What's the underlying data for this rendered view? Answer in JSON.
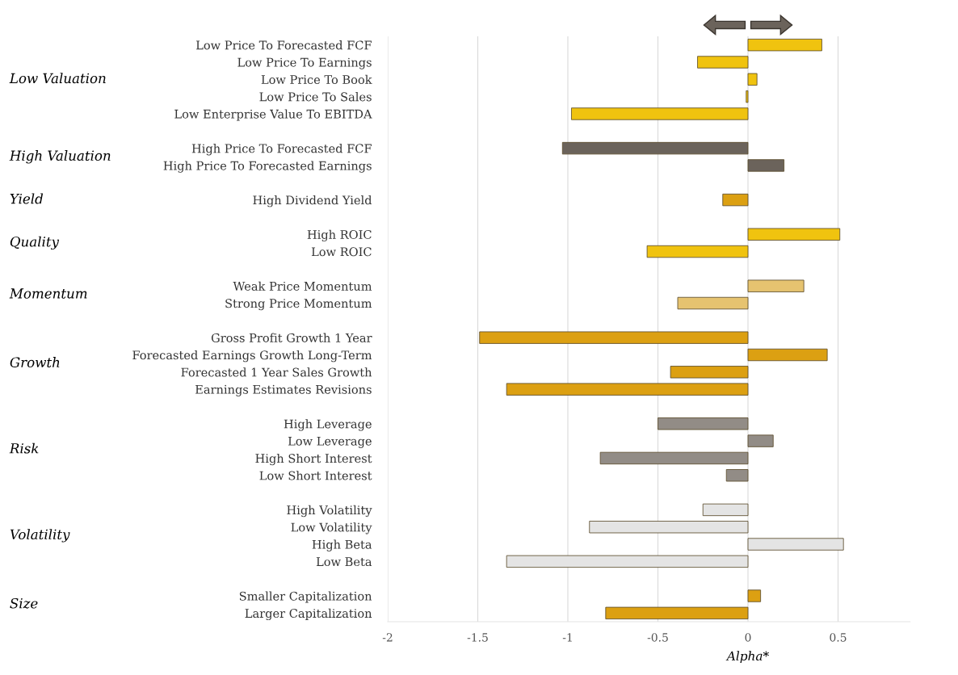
{
  "chart_data": {
    "type": "bar",
    "orientation": "horizontal",
    "xlabel": "Alpha*",
    "categories": [
      "Low Price To Forecasted FCF",
      "Low Price To Earnings",
      "Low Price To Book",
      "Low Price To Sales",
      "Low Enterprise Value To EBITDA",
      null,
      "High Price To Forecasted FCF",
      "High Price To Forecasted Earnings",
      null,
      "High Dividend Yield",
      null,
      "High ROIC",
      "Low ROIC",
      null,
      "Weak Price Momentum",
      "Strong Price Momentum",
      null,
      "Gross Profit Growth 1 Year",
      "Forecasted Earnings Growth Long-Term",
      "Forecasted 1 Year Sales Growth",
      "Earnings Estimates Revisions",
      null,
      "High Leverage",
      "Low Leverage",
      "High Short Interest",
      "Low Short Interest",
      null,
      "High Volatility",
      "Low Volatility",
      "High Beta",
      "Low Beta",
      null,
      "Smaller Capitalization",
      "Larger Capitalization"
    ],
    "values": [
      0.41,
      -0.28,
      0.05,
      -0.01,
      -0.98,
      null,
      -1.03,
      0.2,
      null,
      -0.14,
      null,
      0.51,
      -0.56,
      null,
      0.31,
      -0.39,
      null,
      -1.49,
      0.44,
      -0.43,
      -1.34,
      null,
      -0.5,
      0.14,
      -0.82,
      -0.12,
      null,
      -0.25,
      -0.88,
      0.53,
      -1.34,
      null,
      0.07,
      -0.79
    ],
    "colors": [
      "#f0c30f",
      "#f0c30f",
      "#f0c30f",
      "#f0c30f",
      "#f0c30f",
      null,
      "#6b635b",
      "#6b635b",
      null,
      "#dca012",
      null,
      "#f0c30f",
      "#f0c30f",
      null,
      "#e6c370",
      "#e6c370",
      null,
      "#dca012",
      "#dca012",
      "#dca012",
      "#dca012",
      null,
      "#928c86",
      "#928c86",
      "#928c86",
      "#928c86",
      null,
      "#e4e4e4",
      "#e4e4e4",
      "#e4e4e4",
      "#e4e4e4",
      null,
      "#dca012",
      "#dca012"
    ],
    "xlim": [
      -2,
      0.9
    ],
    "xticks": [
      -2,
      -1.5,
      -1,
      -0.5,
      0,
      0.5
    ],
    "grid": "x",
    "annotations": [
      "Low Valuation",
      "High Valuation",
      "Yield",
      "Quality",
      "Momentum",
      "Growth",
      "Risk",
      "Volatility",
      "Size"
    ]
  }
}
